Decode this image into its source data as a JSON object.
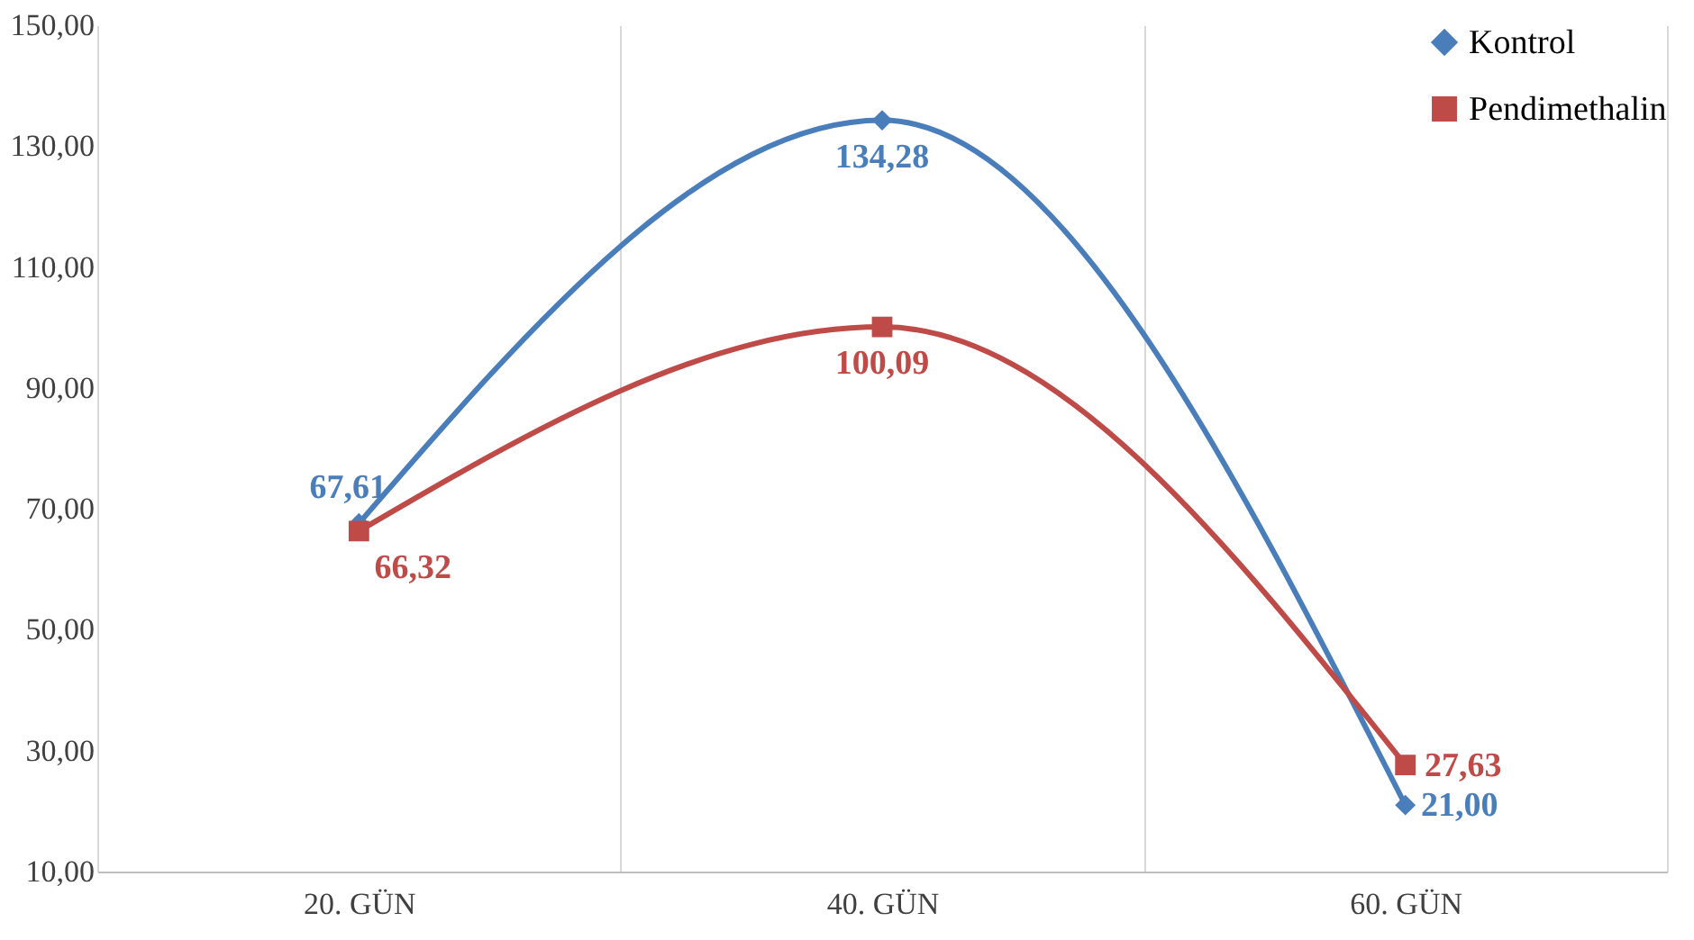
{
  "chart_data": {
    "type": "line",
    "categories": [
      "20. GÜN",
      "40. GÜN",
      "60. GÜN"
    ],
    "series": [
      {
        "name": "Kontrol",
        "color": "#4a7ebb",
        "marker": "diamond",
        "values": [
          67.61,
          134.28,
          21.0
        ],
        "value_labels": [
          "67,61",
          "134,28",
          "21,00"
        ]
      },
      {
        "name": "Pendimethalin",
        "color": "#be4b48",
        "marker": "square",
        "values": [
          66.32,
          100.09,
          27.63
        ],
        "value_labels": [
          "66,32",
          "100,09",
          "27,63"
        ]
      }
    ],
    "ylim": [
      10,
      150
    ],
    "yticks": [
      {
        "value": 10,
        "label": "10,00"
      },
      {
        "value": 30,
        "label": "30,00"
      },
      {
        "value": 50,
        "label": "50,00"
      },
      {
        "value": 70,
        "label": "70,00"
      },
      {
        "value": 90,
        "label": "90,00"
      },
      {
        "value": 110,
        "label": "110,00"
      },
      {
        "value": 130,
        "label": "130,00"
      },
      {
        "value": 150,
        "label": "150,00"
      }
    ],
    "grid": "x",
    "legend": "top right",
    "line_style": "solid"
  }
}
